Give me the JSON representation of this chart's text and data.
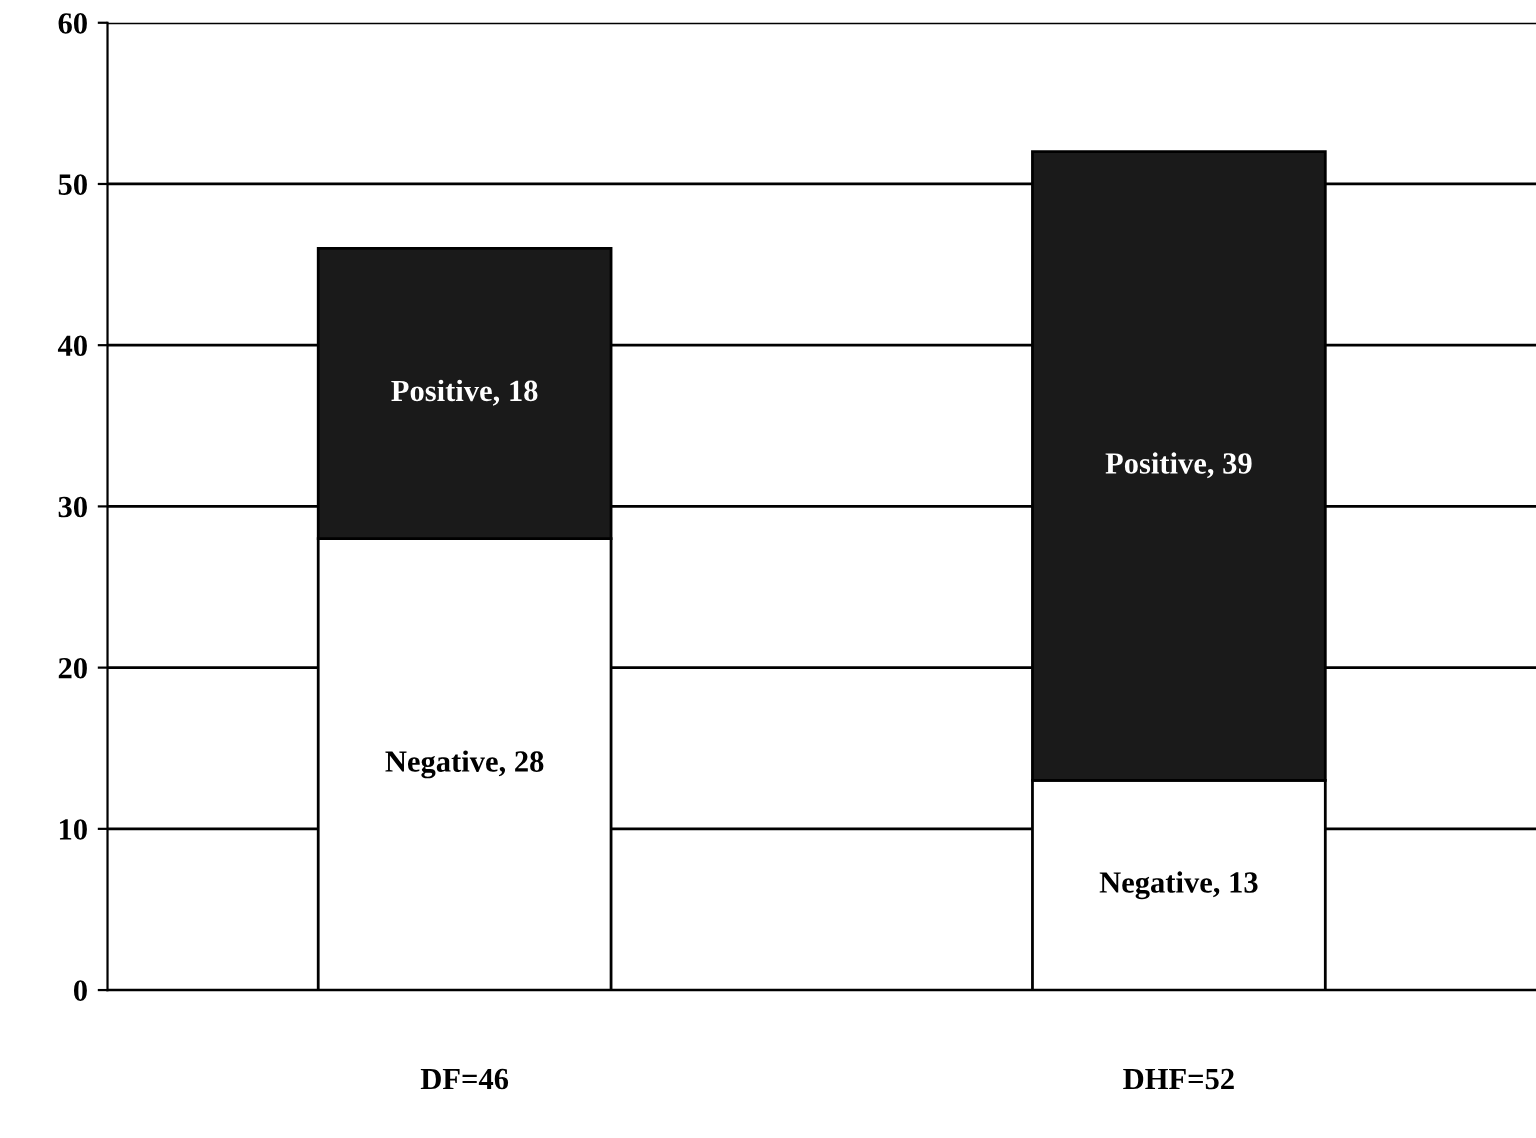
{
  "chart_data": {
    "type": "bar",
    "stacked": true,
    "categories": [
      "DF=46",
      "DHF=52"
    ],
    "series": [
      {
        "color": "#ffffff",
        "values": [
          28,
          13
        ],
        "value_labels": [
          "Negative, 28",
          "Negative, 13"
        ]
      },
      {
        "color": "#1a1a1a",
        "values": [
          18,
          39
        ],
        "value_labels": [
          "Positive, 18",
          "Positive, 39"
        ]
      }
    ],
    "ylim": [
      0,
      60
    ],
    "yticks": [
      0,
      10,
      20,
      30,
      40,
      50,
      60
    ],
    "grid": "y",
    "legend": false
  }
}
